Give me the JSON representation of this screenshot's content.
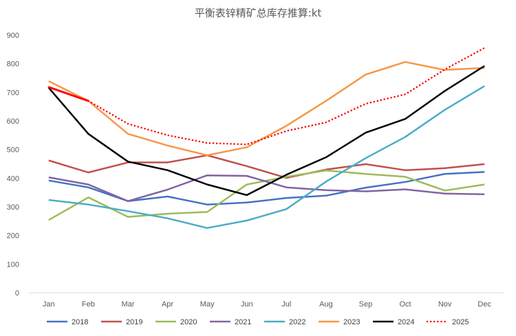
{
  "chart_data": {
    "type": "line",
    "title": "平衡表锌精矿总库存推算:kt",
    "xlabel": "",
    "ylabel": "",
    "categories": [
      "Jan",
      "Feb",
      "Mar",
      "Apr",
      "May",
      "Jun",
      "Jul",
      "Aug",
      "Sep",
      "Oct",
      "Nov",
      "Dec"
    ],
    "ylim": [
      0,
      900
    ],
    "yticks": [
      0,
      100,
      200,
      300,
      400,
      500,
      600,
      700,
      800,
      900
    ],
    "grid": false,
    "legend_position": "bottom",
    "series": [
      {
        "name": "2018",
        "color": "#4472C4",
        "dash": "solid",
        "width": 2.5,
        "values": [
          392,
          368,
          320,
          336,
          308,
          315,
          331,
          339,
          367,
          387,
          415,
          422
        ]
      },
      {
        "name": "2019",
        "color": "#C0504D",
        "dash": "solid",
        "width": 2.5,
        "values": [
          462,
          420,
          455,
          455,
          480,
          442,
          401,
          430,
          449,
          428,
          435,
          449
        ]
      },
      {
        "name": "2020",
        "color": "#9BBB59",
        "dash": "solid",
        "width": 2.5,
        "values": [
          254,
          333,
          265,
          276,
          282,
          378,
          405,
          427,
          415,
          405,
          357,
          378
        ]
      },
      {
        "name": "2021",
        "color": "#8064A2",
        "dash": "solid",
        "width": 2.5,
        "values": [
          403,
          378,
          320,
          360,
          410,
          408,
          368,
          358,
          354,
          361,
          346,
          344
        ]
      },
      {
        "name": "2022",
        "color": "#4BACC6",
        "dash": "solid",
        "width": 2.5,
        "values": [
          324,
          308,
          285,
          260,
          226,
          252,
          292,
          388,
          470,
          544,
          639,
          722
        ]
      },
      {
        "name": "2023",
        "color": "#F79646",
        "dash": "solid",
        "width": 2.5,
        "values": [
          739,
          670,
          555,
          514,
          480,
          508,
          583,
          670,
          762,
          806,
          778,
          785
        ]
      },
      {
        "name": "2024",
        "color": "#000000",
        "dash": "solid",
        "width": 2.5,
        "values": [
          716,
          555,
          458,
          428,
          378,
          341,
          412,
          473,
          559,
          607,
          705,
          792
        ]
      },
      {
        "name": "2025",
        "color": "#FF0000",
        "dash": "dotted",
        "width": 2.5,
        "values": [
          718,
          670,
          590,
          550,
          523,
          518,
          565,
          595,
          660,
          693,
          780,
          855
        ]
      }
    ],
    "highlight_segment": {
      "series": "2025",
      "from": "Jan",
      "to": "Feb",
      "color": "#FF0000"
    }
  }
}
